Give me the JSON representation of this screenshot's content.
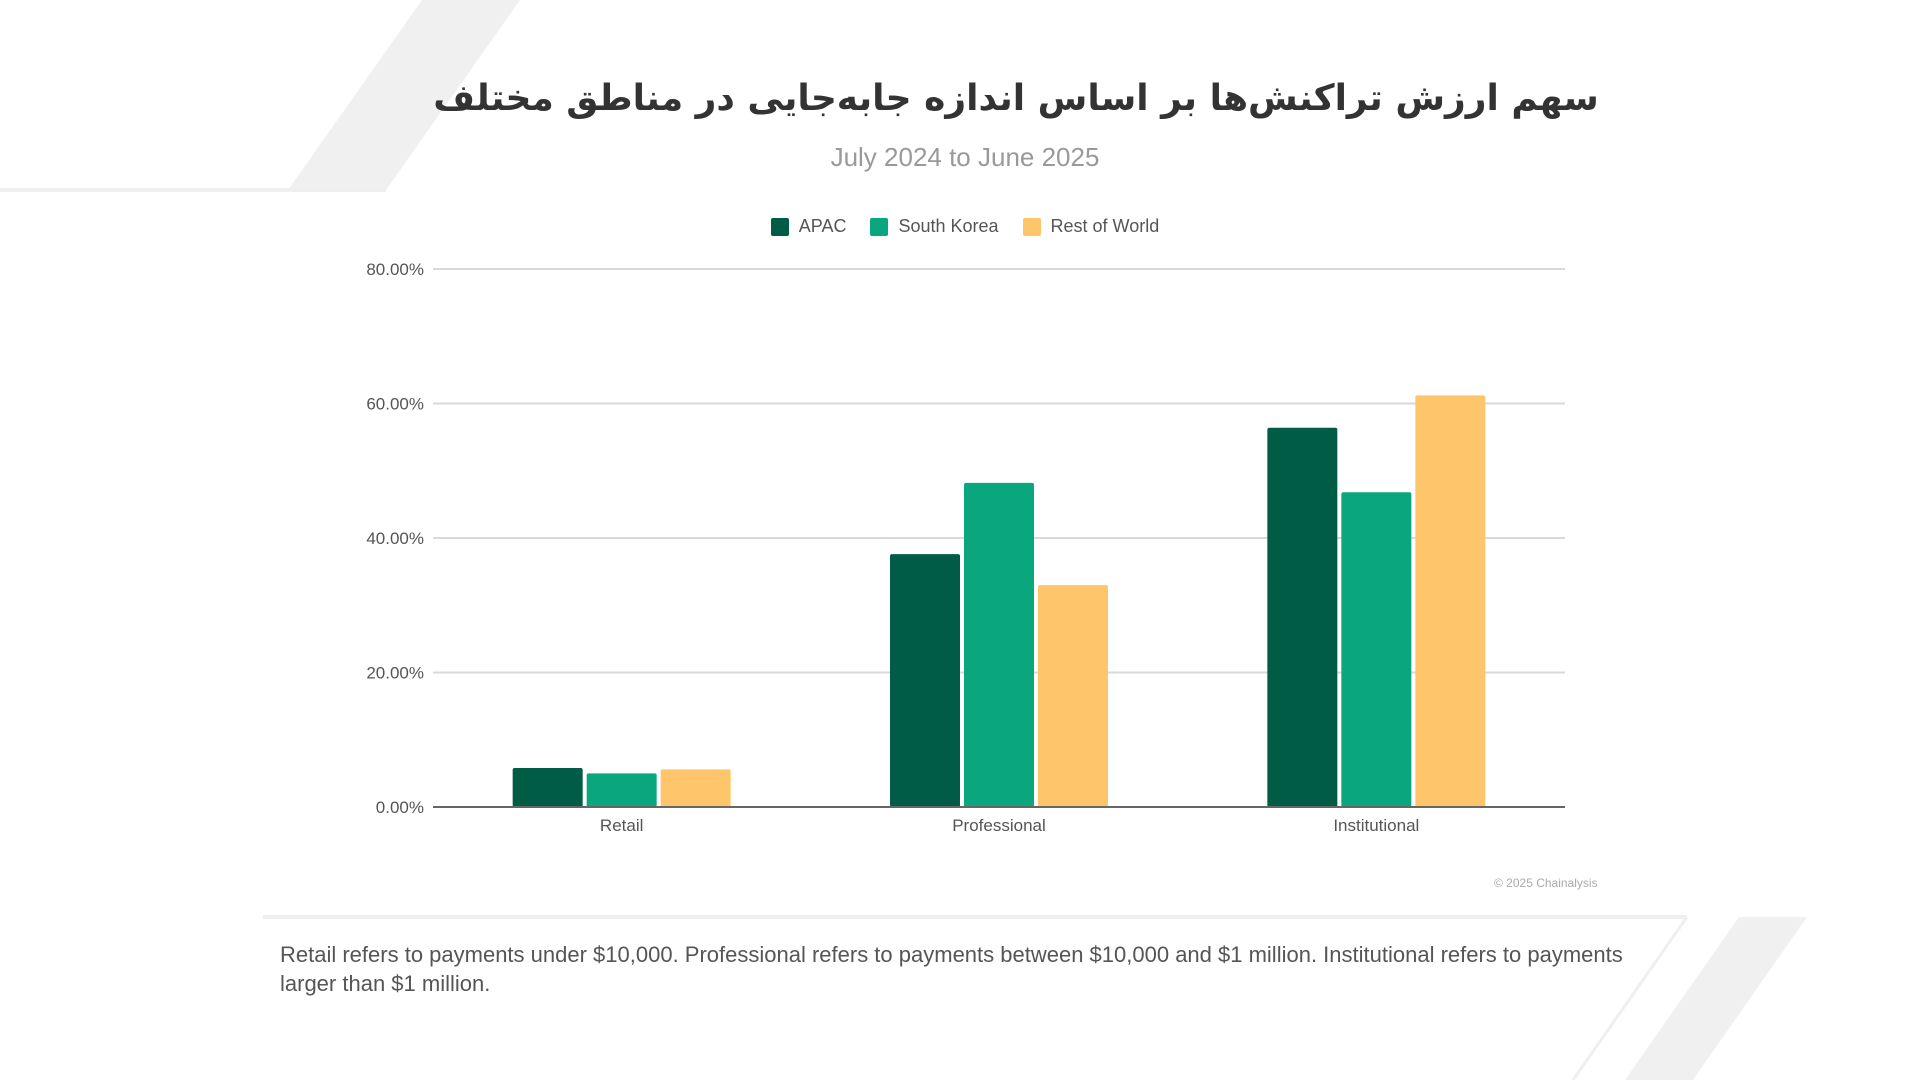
{
  "title": "سهم ارزش تراکنش‌ها بر اساس اندازه جابه‌جایی در مناطق مختلف",
  "subtitle": "July 2024 to June 2025",
  "copyright": "© 2025 Chainalysis",
  "footnote": "Retail refers to payments under $10,000. Professional refers to payments between $10,000 and $1 million. Institutional refers to payments larger than $1 million.",
  "chart_data": {
    "type": "bar",
    "categories": [
      "Retail",
      "Professional",
      "Institutional"
    ],
    "series": [
      {
        "name": "APAC",
        "color": "#005c45",
        "values": [
          5.8,
          37.6,
          56.4
        ]
      },
      {
        "name": "South Korea",
        "color": "#0aa77e",
        "values": [
          5.0,
          48.2,
          46.8
        ]
      },
      {
        "name": "Rest of World",
        "color": "#ffc56b",
        "values": [
          5.6,
          33.0,
          61.2
        ]
      }
    ],
    "yticks": [
      "0.00%",
      "20.00%",
      "40.00%",
      "60.00%",
      "80.00%"
    ],
    "ylim": [
      0,
      80
    ],
    "grid": true,
    "legend": "top-center",
    "unit": "%"
  }
}
